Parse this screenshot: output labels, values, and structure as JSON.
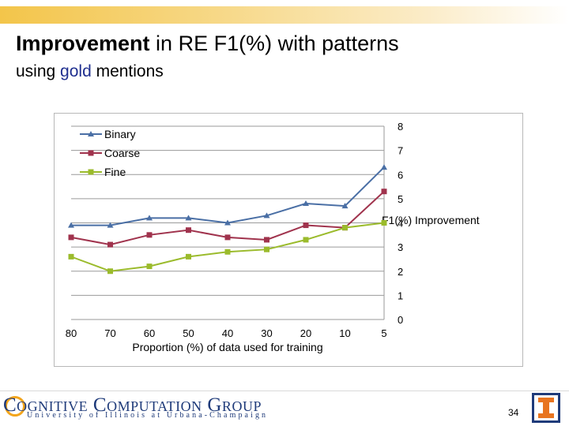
{
  "slide": {
    "title_bold": "Improvement",
    "title_rest": " in RE F1(%) with patterns",
    "subtitle_pre": "using ",
    "subtitle_accent": "gold",
    "subtitle_post": " mentions",
    "page_number": "34",
    "logo_main": "Cognitive Computation Group",
    "logo_sub": "University of Illinois at Urbana-Champaign"
  },
  "colors": {
    "binary": "#4a6fa5",
    "coarse": "#a0334d",
    "fine": "#9bbb2c",
    "accent": "#1f2f8f",
    "uni_orange": "#e8741f",
    "uni_blue": "#1f3b7a"
  },
  "chart_data": {
    "type": "line",
    "title": "",
    "xlabel": "Proportion (%) of data used for training",
    "ylabel": "F1(%) Improvement",
    "categories": [
      "80",
      "70",
      "60",
      "50",
      "40",
      "30",
      "20",
      "10",
      "5"
    ],
    "ylim": [
      0,
      8
    ],
    "yticks": [
      "0",
      "1",
      "2",
      "3",
      "4",
      "5",
      "6",
      "7",
      "8"
    ],
    "y_axis_side": "right",
    "grid": true,
    "legend_position": "top-left",
    "series": [
      {
        "name": "Binary",
        "marker": "triangle",
        "values": [
          3.9,
          3.9,
          4.2,
          4.2,
          4.0,
          4.3,
          4.8,
          4.7,
          6.3
        ]
      },
      {
        "name": "Coarse",
        "marker": "square",
        "values": [
          3.4,
          3.1,
          3.5,
          3.7,
          3.4,
          3.3,
          3.9,
          3.8,
          5.3
        ]
      },
      {
        "name": "Fine",
        "marker": "square",
        "values": [
          2.6,
          2.0,
          2.2,
          2.6,
          2.8,
          2.9,
          3.3,
          3.8,
          4.0
        ]
      }
    ]
  }
}
